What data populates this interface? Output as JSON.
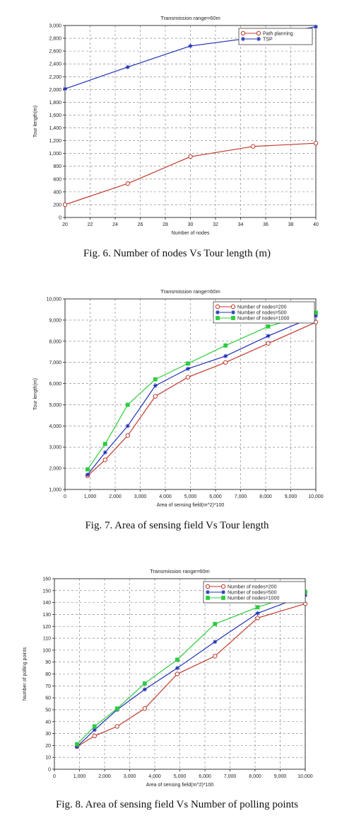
{
  "figures": [
    {
      "caption": "Fig. 6. Number of nodes Vs Tour length (m)",
      "chart_data": {
        "type": "line",
        "title": "Transmission range=60m",
        "xlabel": "Number of nodes",
        "ylabel": "Tour length(m)",
        "xlim": [
          20,
          40
        ],
        "ylim": [
          0,
          3000
        ],
        "x_ticks": [
          20,
          22,
          24,
          26,
          28,
          30,
          32,
          34,
          36,
          38,
          40
        ],
        "y_ticks": [
          0,
          200,
          400,
          600,
          800,
          1000,
          1200,
          1400,
          1600,
          1800,
          2000,
          2200,
          2400,
          2600,
          2800,
          3000
        ],
        "x_tick_labels": [
          "20",
          "22",
          "24",
          "26",
          "28",
          "30",
          "32",
          "34",
          "36",
          "38",
          "40"
        ],
        "y_tick_labels": [
          "0",
          "200",
          "400",
          "600",
          "800",
          "1,000",
          "1,200",
          "1,400",
          "1,600",
          "1,800",
          "2,000",
          "2,200",
          "2,400",
          "2,600",
          "2,800",
          "3,000"
        ],
        "grid": true,
        "legend_position": "top-right",
        "series": [
          {
            "name": "Path planning",
            "color": "#c0392b",
            "marker": "circle",
            "x": [
              20,
              25,
              30,
              35,
              40
            ],
            "y": [
              200,
              530,
              950,
              1110,
              1160
            ]
          },
          {
            "name": "TSP",
            "color": "#1f2fb5",
            "marker": "star",
            "x": [
              20,
              25,
              30,
              35,
              40
            ],
            "y": [
              2010,
              2350,
              2680,
              2810,
              2980
            ]
          }
        ]
      }
    },
    {
      "caption": "Fig. 7. Area of sensing field Vs Tour length",
      "chart_data": {
        "type": "line",
        "title": "Transmission range=60m",
        "xlabel": "Area of sensing field(m^2)*100",
        "ylabel": "Tour length(m)",
        "xlim": [
          0,
          10000
        ],
        "ylim": [
          1000,
          10000
        ],
        "x_ticks": [
          0,
          1000,
          2000,
          3000,
          4000,
          5000,
          6000,
          7000,
          8000,
          9000,
          10000
        ],
        "y_ticks": [
          1000,
          2000,
          3000,
          4000,
          5000,
          6000,
          7000,
          8000,
          9000,
          10000
        ],
        "x_tick_labels": [
          "0",
          "1,000",
          "2,000",
          "3,000",
          "4,000",
          "5,000",
          "6,000",
          "7,000",
          "8,000",
          "9,000",
          "10,000"
        ],
        "y_tick_labels": [
          "1,000",
          "2,000",
          "3,000",
          "4,000",
          "5,000",
          "6,000",
          "7,000",
          "8,000",
          "9,000",
          "10,000"
        ],
        "grid": true,
        "legend_position": "top-right",
        "series": [
          {
            "name": "Number of nodes=200",
            "color": "#c0392b",
            "marker": "circle",
            "x": [
              900,
              1600,
              2500,
              3600,
              4900,
              6400,
              8100,
              10000
            ],
            "y": [
              1650,
              2400,
              3550,
              5400,
              6300,
              7000,
              7900,
              8900
            ]
          },
          {
            "name": "Number of nodes=500",
            "color": "#1f2fb5",
            "marker": "star",
            "x": [
              900,
              1600,
              2500,
              3600,
              4900,
              6400,
              8100,
              10000
            ],
            "y": [
              1700,
              2750,
              4000,
              5900,
              6700,
              7300,
              8250,
              9200
            ]
          },
          {
            "name": "Number of nodes=1000",
            "color": "#2ecc40",
            "marker": "square",
            "x": [
              900,
              1600,
              2500,
              3600,
              4900,
              6400,
              8100,
              10000
            ],
            "y": [
              1950,
              3150,
              5000,
              6200,
              6950,
              7800,
              8700,
              9350
            ]
          }
        ]
      }
    },
    {
      "caption": "Fig. 8. Area of sensing field Vs Number of polling points",
      "chart_data": {
        "type": "line",
        "title": "Transmission range=60m",
        "xlabel": "Area of sensing field(m^2)*100",
        "ylabel": "Number of polling points",
        "xlim": [
          0,
          10000
        ],
        "ylim": [
          0,
          160
        ],
        "x_ticks": [
          0,
          1000,
          2000,
          3000,
          4000,
          5000,
          6000,
          7000,
          8000,
          9000,
          10000
        ],
        "y_ticks": [
          0,
          10,
          20,
          30,
          40,
          50,
          60,
          70,
          80,
          90,
          100,
          110,
          120,
          130,
          140,
          150,
          160
        ],
        "x_tick_labels": [
          "0",
          "1,000",
          "2,000",
          "3,000",
          "4,000",
          "5,000",
          "6,000",
          "7,000",
          "8,000",
          "9,000",
          "10,000"
        ],
        "y_tick_labels": [
          "0",
          "10",
          "20",
          "30",
          "40",
          "50",
          "60",
          "70",
          "80",
          "90",
          "100",
          "110",
          "120",
          "130",
          "140",
          "150",
          "160"
        ],
        "grid": true,
        "legend_position": "top-right",
        "series": [
          {
            "name": "Number of nodes=200",
            "color": "#c0392b",
            "marker": "circle",
            "x": [
              900,
              1600,
              2500,
              3600,
              4900,
              6400,
              8100,
              10000
            ],
            "y": [
              19,
              28,
              36,
              51,
              80,
              95,
              127,
              139
            ]
          },
          {
            "name": "Number of nodes=500",
            "color": "#1f2fb5",
            "marker": "star",
            "x": [
              900,
              1600,
              2500,
              3600,
              4900,
              6400,
              8100,
              10000
            ],
            "y": [
              19,
              33,
              50,
              67,
              85,
              107,
              131,
              146
            ]
          },
          {
            "name": "Number of nodes=1000",
            "color": "#2ecc40",
            "marker": "square",
            "x": [
              900,
              1600,
              2500,
              3600,
              4900,
              6400,
              8100,
              10000
            ],
            "y": [
              21,
              36,
              51,
              72,
              92,
              122,
              136,
              149
            ]
          }
        ]
      }
    }
  ]
}
